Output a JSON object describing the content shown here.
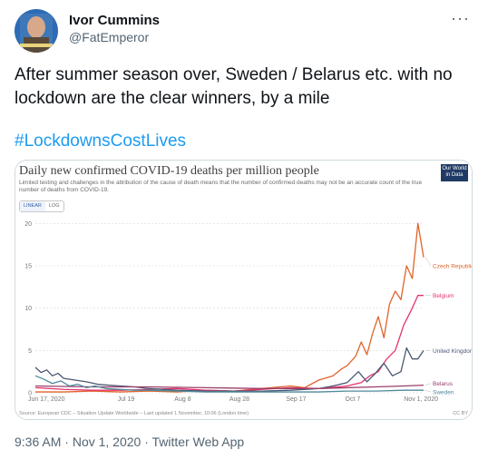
{
  "tweet": {
    "author_name": "Ivor Cummins",
    "author_handle": "@FatEmperor",
    "text": "After summer season over, Sweden / Belarus etc. with no lockdown are the clear winners, by a mile",
    "hashtag": "#LockdownsCostLives",
    "time": "9:36 AM",
    "date": "Nov 1, 2020",
    "source": "Twitter Web App",
    "more_icon": "more-dots-icon"
  },
  "chart_data": {
    "type": "line",
    "title": "Daily new confirmed COVID-19 deaths per million people",
    "subtitle": "Limited testing and challenges in the attribution of the cause of death means that the number of confirmed deaths may not be an accurate count of the true number of deaths from COVID-19.",
    "brand": "Our World in Data",
    "toggle_linear": "LINEAR",
    "toggle_log": "LOG",
    "x_ticks": [
      "Jun 17, 2020",
      "Jul 19",
      "Aug 8",
      "Aug 28",
      "Sep 17",
      "Oct 7",
      "Nov 1, 2020"
    ],
    "x_tick_pos": [
      0,
      32,
      52,
      72,
      92,
      112,
      137
    ],
    "y_ticks": [
      0,
      5,
      10,
      15,
      20
    ],
    "ylim": [
      0,
      21
    ],
    "xlim": [
      0,
      137
    ],
    "source": "Source: European CDC – Situation Update Worldwide – Last updated 1 November, 10:06 (London time)",
    "license": "CC BY",
    "series": [
      {
        "name": "Czech Republic",
        "color": "#e0642a",
        "x": [
          0,
          10,
          20,
          30,
          40,
          50,
          60,
          70,
          80,
          90,
          95,
          100,
          105,
          108,
          110,
          113,
          115,
          117,
          119,
          121,
          123,
          125,
          127,
          129,
          131,
          133,
          135,
          136,
          137
        ],
        "y": [
          0.1,
          0.1,
          0.2,
          0.1,
          0.2,
          0.1,
          0.3,
          0.2,
          0.5,
          0.8,
          0.6,
          1.5,
          2.0,
          2.8,
          3.2,
          4.3,
          6.0,
          4.5,
          7.0,
          9.0,
          6.5,
          10.5,
          12.0,
          11.0,
          15.0,
          13.5,
          20.0,
          18.0,
          16.0
        ]
      },
      {
        "name": "Belgium",
        "color": "#e5336b",
        "x": [
          0,
          10,
          20,
          30,
          40,
          50,
          60,
          70,
          80,
          90,
          100,
          110,
          115,
          118,
          121,
          124,
          127,
          130,
          133,
          135,
          137
        ],
        "y": [
          0.6,
          0.4,
          0.3,
          0.3,
          0.4,
          0.5,
          0.3,
          0.2,
          0.4,
          0.6,
          0.5,
          0.8,
          1.2,
          2.0,
          2.5,
          4.0,
          5.0,
          8.0,
          10.0,
          11.5,
          11.5
        ]
      },
      {
        "name": "United Kingdom",
        "color": "#4a5873",
        "x": [
          0,
          2,
          4,
          6,
          8,
          10,
          14,
          18,
          22,
          26,
          30,
          35,
          40,
          50,
          60,
          70,
          80,
          90,
          100,
          105,
          110,
          114,
          117,
          120,
          123,
          126,
          129,
          131,
          133,
          135,
          137
        ],
        "y": [
          3.0,
          2.4,
          2.7,
          2.0,
          2.3,
          1.7,
          1.5,
          1.3,
          1.0,
          0.9,
          0.8,
          0.7,
          0.5,
          0.3,
          0.2,
          0.2,
          0.2,
          0.3,
          0.5,
          0.8,
          1.2,
          2.5,
          1.3,
          2.3,
          3.5,
          2.0,
          2.5,
          5.3,
          4.0,
          4.0,
          5.0
        ]
      },
      {
        "name": "Belarus",
        "color": "#9a3f6a",
        "x": [
          0,
          20,
          40,
          60,
          80,
          100,
          120,
          130,
          137
        ],
        "y": [
          0.8,
          0.7,
          0.7,
          0.6,
          0.5,
          0.5,
          0.7,
          0.8,
          0.9
        ]
      },
      {
        "name": "Sweden",
        "color": "#4f8a9c",
        "x": [
          0,
          3,
          6,
          9,
          12,
          15,
          18,
          21,
          25,
          30,
          35,
          40,
          50,
          60,
          70,
          80,
          90,
          100,
          110,
          120,
          130,
          137
        ],
        "y": [
          2.0,
          1.6,
          1.1,
          1.4,
          0.8,
          1.0,
          0.6,
          0.8,
          0.5,
          0.4,
          0.3,
          0.3,
          0.2,
          0.1,
          0.1,
          0.1,
          0.1,
          0.1,
          0.2,
          0.2,
          0.3,
          0.3
        ]
      }
    ]
  }
}
